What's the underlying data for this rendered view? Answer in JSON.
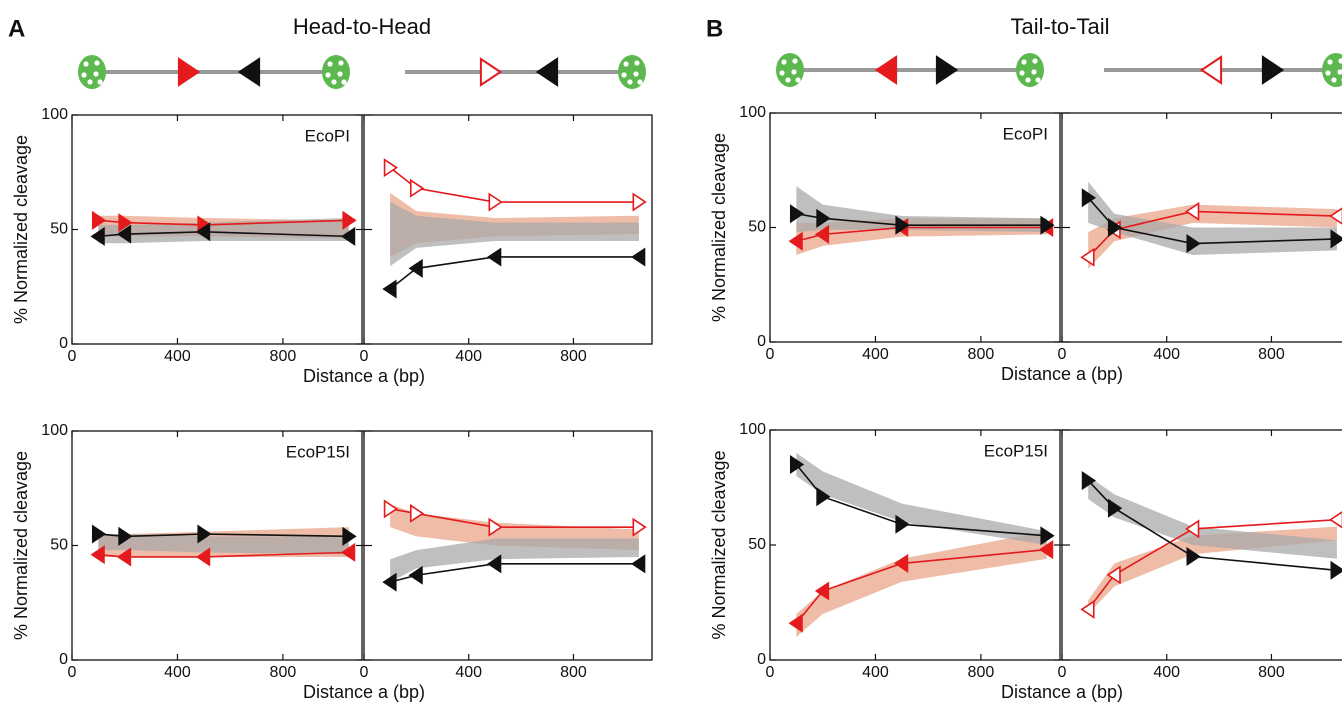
{
  "panels": [
    {
      "label": "A",
      "title": "Head-to-Head"
    },
    {
      "label": "B",
      "title": "Tail-to-Tail"
    }
  ],
  "chart_data": [
    {
      "type": "line",
      "title": "EcoPI",
      "ylabel": "% Normalized cleavage",
      "xlabel": "Distance a (bp)",
      "xlim": [
        0,
        1100
      ],
      "xticks": [
        0,
        400,
        800
      ],
      "ylim": [
        0,
        100
      ],
      "yticks": [
        0,
        50,
        100
      ],
      "x": [
        100,
        200,
        500,
        1050
      ],
      "series": [
        {
          "color": "#e41a1c",
          "marker": "triangle-right",
          "filled": true,
          "values": [
            54,
            53,
            52,
            54
          ],
          "band_color": "#e8a58a",
          "band_lower": [
            47,
            47,
            47,
            46
          ],
          "band_upper": [
            56,
            56,
            55,
            54
          ]
        },
        {
          "color": "#111111",
          "marker": "triangle-left",
          "filled": true,
          "values": [
            47,
            48,
            49,
            47
          ],
          "band_color": "#a9a9a9",
          "band_lower": [
            44,
            44,
            45,
            45
          ],
          "band_upper": [
            52,
            52,
            53,
            55
          ]
        }
      ]
    },
    {
      "type": "line",
      "xlim": [
        0,
        1100
      ],
      "xticks": [
        0,
        400,
        800
      ],
      "ylim": [
        0,
        100
      ],
      "x": [
        100,
        200,
        500,
        1050
      ],
      "series": [
        {
          "color": "#e41a1c",
          "marker": "triangle-right",
          "filled": false,
          "values": [
            77,
            68,
            62,
            62
          ],
          "band_color": "#e8a58a",
          "band_lower": [
            38,
            44,
            47,
            48
          ],
          "band_upper": [
            66,
            58,
            55,
            56
          ]
        },
        {
          "color": "#111111",
          "marker": "triangle-left",
          "filled": true,
          "values": [
            24,
            33,
            38,
            38
          ],
          "band_color": "#a9a9a9",
          "band_lower": [
            34,
            42,
            45,
            45
          ],
          "band_upper": [
            62,
            56,
            53,
            53
          ]
        }
      ]
    },
    {
      "type": "line",
      "title": "EcoP15I",
      "ylabel": "% Normalized cleavage",
      "xlabel": "Distance a (bp)",
      "xlim": [
        0,
        1100
      ],
      "xticks": [
        0,
        400,
        800
      ],
      "ylim": [
        0,
        100
      ],
      "yticks": [
        0,
        50,
        100
      ],
      "x": [
        100,
        200,
        500,
        1050
      ],
      "series": [
        {
          "color": "#e41a1c",
          "marker": "triangle-left",
          "filled": true,
          "values": [
            46,
            45,
            45,
            47
          ],
          "band_color": "#e8a58a",
          "band_lower": [
            45,
            45,
            45,
            45
          ],
          "band_upper": [
            54,
            55,
            56,
            58
          ]
        },
        {
          "color": "#111111",
          "marker": "triangle-right",
          "filled": true,
          "values": [
            55,
            54,
            55,
            54
          ],
          "band_color": "#a9a9a9",
          "band_lower": [
            48,
            48,
            47,
            46
          ],
          "band_upper": [
            55,
            55,
            54,
            54
          ]
        }
      ]
    },
    {
      "type": "line",
      "xlim": [
        0,
        1100
      ],
      "xticks": [
        0,
        400,
        800
      ],
      "ylim": [
        0,
        100
      ],
      "x": [
        100,
        200,
        500,
        1050
      ],
      "series": [
        {
          "color": "#e41a1c",
          "marker": "triangle-right",
          "filled": false,
          "values": [
            66,
            64,
            58,
            58
          ],
          "band_color": "#e8a58a",
          "band_lower": [
            58,
            54,
            50,
            48
          ],
          "band_upper": [
            68,
            64,
            60,
            57
          ]
        },
        {
          "color": "#111111",
          "marker": "triangle-left",
          "filled": true,
          "values": [
            34,
            37,
            42,
            42
          ],
          "band_color": "#a9a9a9",
          "band_lower": [
            34,
            40,
            44,
            45
          ],
          "band_upper": [
            44,
            48,
            53,
            53
          ]
        }
      ]
    },
    {
      "type": "line",
      "title": "EcoPI",
      "ylabel": "% Normalized cleavage",
      "xlabel": "Distance a (bp)",
      "xlim": [
        0,
        1100
      ],
      "xticks": [
        0,
        400,
        800
      ],
      "ylim": [
        0,
        100
      ],
      "yticks": [
        0,
        50,
        100
      ],
      "x": [
        100,
        200,
        500,
        1050
      ],
      "series": [
        {
          "color": "#e41a1c",
          "marker": "triangle-left",
          "filled": true,
          "values": [
            44,
            47,
            50,
            50
          ],
          "band_color": "#e8a58a",
          "band_lower": [
            38,
            42,
            46,
            47
          ],
          "band_upper": [
            52,
            52,
            54,
            54
          ]
        },
        {
          "color": "#111111",
          "marker": "triangle-right",
          "filled": true,
          "values": [
            56,
            54,
            51,
            51
          ],
          "band_color": "#a9a9a9",
          "band_lower": [
            48,
            49,
            49,
            48
          ],
          "band_upper": [
            68,
            60,
            55,
            54
          ]
        }
      ]
    },
    {
      "type": "line",
      "xlim": [
        0,
        1100
      ],
      "xticks": [
        0,
        400,
        800
      ],
      "ylim": [
        0,
        100
      ],
      "x": [
        100,
        200,
        500,
        1050
      ],
      "series": [
        {
          "color": "#e41a1c",
          "marker": "triangle-left",
          "filled": false,
          "values": [
            37,
            49,
            57,
            55
          ],
          "band_color": "#e8a58a",
          "band_lower": [
            32,
            44,
            52,
            50
          ],
          "band_upper": [
            48,
            54,
            60,
            58
          ]
        },
        {
          "color": "#111111",
          "marker": "triangle-right",
          "filled": true,
          "values": [
            63,
            50,
            43,
            45
          ],
          "band_color": "#a9a9a9",
          "band_lower": [
            52,
            48,
            38,
            40
          ],
          "band_upper": [
            70,
            56,
            50,
            50
          ]
        }
      ]
    },
    {
      "type": "line",
      "title": "EcoP15I",
      "ylabel": "% Normalized cleavage",
      "xlabel": "Distance a (bp)",
      "xlim": [
        0,
        1100
      ],
      "xticks": [
        0,
        400,
        800
      ],
      "ylim": [
        0,
        100
      ],
      "yticks": [
        0,
        50,
        100
      ],
      "x": [
        100,
        200,
        500,
        1050
      ],
      "series": [
        {
          "color": "#e41a1c",
          "marker": "triangle-left",
          "filled": true,
          "values": [
            16,
            30,
            42,
            48
          ],
          "band_color": "#e8a58a",
          "band_lower": [
            10,
            20,
            34,
            44
          ],
          "band_upper": [
            20,
            30,
            44,
            56
          ]
        },
        {
          "color": "#111111",
          "marker": "triangle-right",
          "filled": true,
          "values": [
            85,
            71,
            59,
            54
          ],
          "band_color": "#a9a9a9",
          "band_lower": [
            80,
            72,
            60,
            50
          ],
          "band_upper": [
            90,
            82,
            68,
            56
          ]
        }
      ]
    },
    {
      "type": "line",
      "xlim": [
        0,
        1100
      ],
      "xticks": [
        0,
        400,
        800
      ],
      "ylim": [
        0,
        100
      ],
      "x": [
        100,
        200,
        500,
        1050
      ],
      "series": [
        {
          "color": "#e41a1c",
          "marker": "triangle-left",
          "filled": false,
          "values": [
            22,
            37,
            57,
            61
          ],
          "band_color": "#e8a58a",
          "band_lower": [
            20,
            32,
            46,
            52
          ],
          "band_upper": [
            26,
            42,
            54,
            58
          ]
        },
        {
          "color": "#111111",
          "marker": "triangle-right",
          "filled": true,
          "values": [
            78,
            66,
            45,
            39
          ],
          "band_color": "#a9a9a9",
          "band_lower": [
            70,
            62,
            50,
            44
          ],
          "band_upper": [
            80,
            72,
            58,
            52
          ]
        }
      ]
    }
  ]
}
